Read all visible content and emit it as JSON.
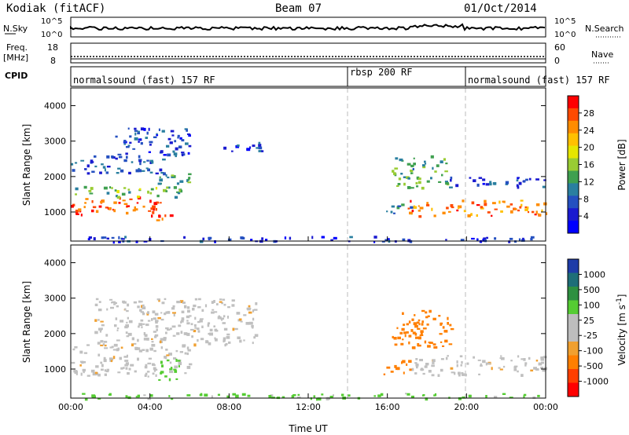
{
  "header": {
    "station": "Kodiak (fitACF)",
    "beam": "Beam 07",
    "date": "01/Oct/2014"
  },
  "top_panels": {
    "nsky_label": "N.Sky",
    "nsky_ticks": [
      "10^5",
      "10^0"
    ],
    "nsearch_label": "N.Search",
    "nsearch_ticks": [
      "10^5",
      "10^0"
    ],
    "freq_label": "Freq.",
    "freq_unit": "[MHz]",
    "freq_ticks": [
      "18",
      "8"
    ],
    "nave_label": "Nave",
    "nave_ticks": [
      "60",
      "0"
    ],
    "cpid_label": "CPID",
    "cpid_segments": [
      {
        "label": "normalsound (fast) 157 RF",
        "start_hour": 0,
        "end_hour": 14
      },
      {
        "label": "rbsp 200 RF",
        "start_hour": 14,
        "end_hour": 20
      },
      {
        "label": "normalsound (fast) 157 RF",
        "start_hour": 20,
        "end_hour": 24
      }
    ]
  },
  "colorbars": {
    "power": {
      "label": "Power [dB]",
      "ticks": [
        "28",
        "24",
        "20",
        "16",
        "12",
        "8",
        "4"
      ],
      "colors": [
        "#ff0000",
        "#ff4a00",
        "#ff8c00",
        "#ffc000",
        "#e6e600",
        "#99cc33",
        "#3fa050",
        "#2a7fa0",
        "#2450c0",
        "#1a1ad0",
        "#0000ff"
      ]
    },
    "velocity": {
      "label": "Velocity [m s",
      "label_sup": "-1",
      "label_end": "]",
      "ticks": [
        "1000",
        "500",
        "100",
        "25",
        "-25",
        "-100",
        "-500",
        "-1000"
      ],
      "colors": [
        "#1e3ca8",
        "#1e6e78",
        "#2e9040",
        "#55cc33",
        "#bdbdbd",
        "#bdbdbd",
        "#f0a030",
        "#ff7f00",
        "#ff3f00",
        "#ff0000"
      ]
    }
  },
  "axes": {
    "y_label": "Slant Range [km]",
    "y_ticks": [
      "4000",
      "3000",
      "2000",
      "1000"
    ],
    "x_label": "Time UT",
    "x_ticks": [
      "00:00",
      "04:00",
      "08:00",
      "12:00",
      "16:00",
      "20:00",
      "00:00"
    ]
  },
  "chart_data": [
    {
      "type": "heatmap",
      "title": "",
      "xlabel": "Time UT",
      "ylabel": "Slant Range [km]",
      "xlim_hours": [
        0,
        24
      ],
      "ylim_km": [
        180,
        4500
      ],
      "colorbar": "Power [dB]",
      "color_range_db": [
        0,
        30
      ],
      "echo_regions": [
        {
          "t0": 0.0,
          "t1": 4.6,
          "r0": 950,
          "r1": 1450,
          "value": 26
        },
        {
          "t0": 3.8,
          "t1": 5.3,
          "r0": 750,
          "r1": 1050,
          "value": 28
        },
        {
          "t0": 0.0,
          "t1": 5.6,
          "r0": 1450,
          "r1": 1750,
          "value": 14
        },
        {
          "t0": 4.3,
          "t1": 6.0,
          "r0": 1700,
          "r1": 2200,
          "value": 12
        },
        {
          "t0": 0.0,
          "t1": 5.0,
          "r0": 2100,
          "r1": 2600,
          "value": 7
        },
        {
          "t0": 2.0,
          "t1": 6.0,
          "r0": 2600,
          "r1": 3400,
          "value": 6
        },
        {
          "t0": 7.6,
          "t1": 9.8,
          "r0": 2700,
          "r1": 3000,
          "value": 6
        },
        {
          "t0": 15.8,
          "t1": 17.2,
          "r0": 950,
          "r1": 1250,
          "value": 10
        },
        {
          "t0": 17.0,
          "t1": 24.0,
          "r0": 900,
          "r1": 1350,
          "value": 24
        },
        {
          "t0": 16.2,
          "t1": 19.0,
          "r0": 1700,
          "r1": 2600,
          "value": 12
        },
        {
          "t0": 19.0,
          "t1": 24.0,
          "r0": 1700,
          "r1": 2000,
          "value": 6
        },
        {
          "t0": 0.0,
          "t1": 24.0,
          "r0": 180,
          "r1": 330,
          "value": 5
        }
      ]
    },
    {
      "type": "heatmap",
      "title": "",
      "xlabel": "Time UT",
      "ylabel": "Slant Range [km]",
      "xlim_hours": [
        0,
        24
      ],
      "ylim_km": [
        180,
        4500
      ],
      "colorbar": "Velocity [m s-1]",
      "echo_regions": [
        {
          "t0": 0.0,
          "t1": 6.0,
          "r0": 800,
          "r1": 1700,
          "value": 0
        },
        {
          "t0": 4.3,
          "t1": 5.6,
          "r0": 700,
          "r1": 1300,
          "value": 150
        },
        {
          "t0": 1.0,
          "t1": 9.5,
          "r0": 1700,
          "r1": 3000,
          "value": 0
        },
        {
          "t0": 15.8,
          "t1": 17.2,
          "r0": 850,
          "r1": 1300,
          "value": -200
        },
        {
          "t0": 17.0,
          "t1": 24.0,
          "r0": 850,
          "r1": 1400,
          "value": 0
        },
        {
          "t0": 16.2,
          "t1": 19.2,
          "r0": 1600,
          "r1": 2700,
          "value": -150
        },
        {
          "t0": 0.0,
          "t1": 24.0,
          "r0": 180,
          "r1": 330,
          "value": 80
        }
      ]
    }
  ]
}
